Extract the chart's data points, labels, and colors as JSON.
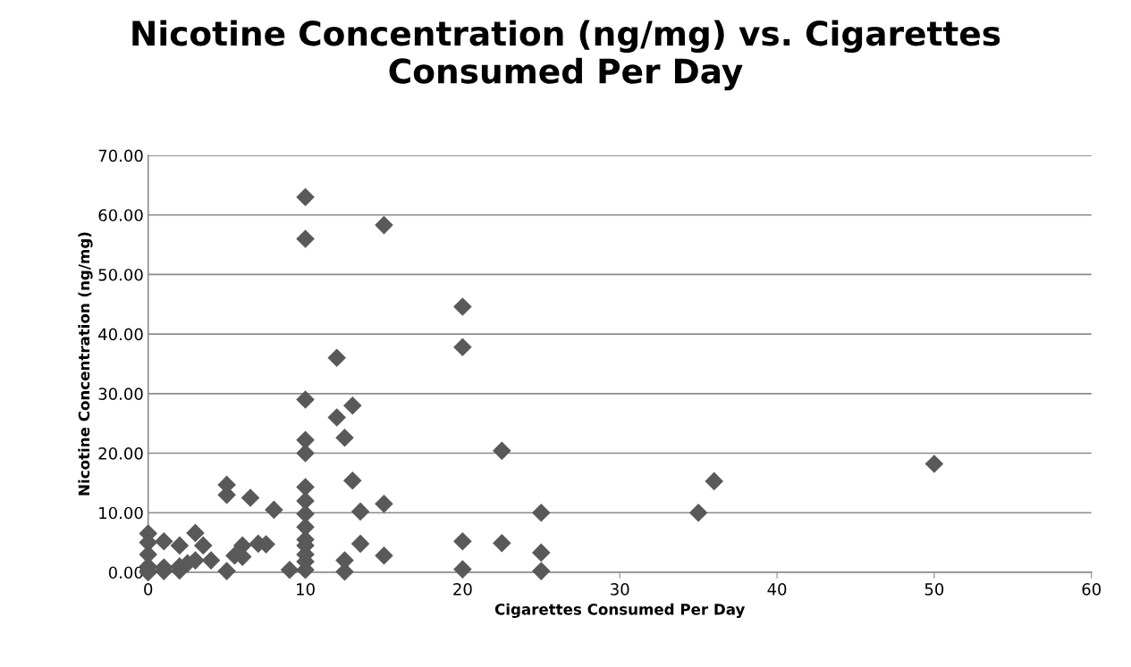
{
  "chart_data": {
    "type": "scatter",
    "title": "Nicotine Concentration (ng/mg) vs. Cigarettes\nConsumed Per Day",
    "xlabel": "Cigarettes Consumed Per Day",
    "ylabel": "Nicotine Concentration (ng/mg)",
    "x": [
      0,
      0,
      0,
      0,
      0,
      0,
      1,
      1,
      1,
      2,
      2,
      2,
      2.5,
      3,
      3,
      3.5,
      4,
      5,
      5,
      5,
      5.5,
      6,
      6,
      6.5,
      7,
      7.5,
      8,
      9,
      10,
      10,
      10,
      10,
      10,
      10,
      10,
      10,
      10,
      10,
      10,
      10,
      10,
      10,
      12,
      12,
      12.5,
      12.5,
      12.5,
      13,
      13,
      13.5,
      13.5,
      15,
      15,
      15,
      20,
      20,
      20,
      20,
      22.5,
      22.5,
      25,
      25,
      25,
      35,
      36,
      50
    ],
    "series": [
      {
        "color": "#595959",
        "values": [
          6.5,
          5.0,
          3.0,
          1.0,
          0.3,
          0.0,
          5.2,
          0.8,
          0.2,
          4.5,
          1.0,
          0.3,
          1.5,
          6.6,
          2.0,
          4.5,
          2.0,
          14.7,
          13.0,
          0.2,
          2.8,
          4.5,
          2.6,
          12.5,
          4.8,
          4.7,
          10.5,
          0.4,
          63,
          56,
          29,
          22.2,
          20,
          14.3,
          12,
          9.8,
          7.6,
          5.5,
          4.5,
          3,
          1.8,
          0.4,
          36,
          26,
          22.6,
          2,
          0.1,
          28,
          15.4,
          10.2,
          4.8,
          58.3,
          11.5,
          2.8,
          44.6,
          37.8,
          5.2,
          0.5,
          20.4,
          4.9,
          10,
          3.3,
          0.2,
          10,
          15.3,
          18.2
        ]
      }
    ],
    "xlim": [
      0,
      60
    ],
    "xticks": [
      0,
      10,
      20,
      30,
      40,
      50,
      60
    ],
    "ylim": [
      0,
      70
    ],
    "yticks": [
      {
        "value": 0,
        "label": "0.00"
      },
      {
        "value": 10,
        "label": "10.00"
      },
      {
        "value": 20,
        "label": "20.00"
      },
      {
        "value": 30,
        "label": "30.00"
      },
      {
        "value": 40,
        "label": "40.00"
      },
      {
        "value": 50,
        "label": "50.00"
      },
      {
        "value": 60,
        "label": "60.00"
      },
      {
        "value": 70,
        "label": "70.00"
      }
    ],
    "grid": "y",
    "marker": "diamond",
    "legend": false
  }
}
